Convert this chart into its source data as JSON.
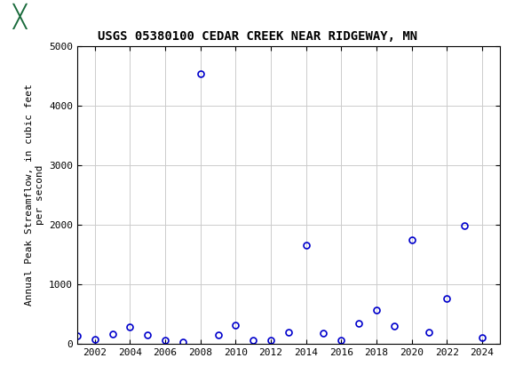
{
  "title": "USGS 05380100 CEDAR CREEK NEAR RIDGEWAY, MN",
  "ylabel": "Annual Peak Streamflow, in cubic feet\nper second",
  "xlabel": "",
  "xlim": [
    2001,
    2025
  ],
  "ylim": [
    0,
    5000
  ],
  "yticks": [
    0,
    1000,
    2000,
    3000,
    4000,
    5000
  ],
  "xticks": [
    2002,
    2004,
    2006,
    2008,
    2010,
    2012,
    2014,
    2016,
    2018,
    2020,
    2022,
    2024
  ],
  "years": [
    2001,
    2002,
    2003,
    2004,
    2005,
    2006,
    2007,
    2008,
    2009,
    2010,
    2011,
    2012,
    2013,
    2014,
    2015,
    2016,
    2017,
    2018,
    2019,
    2020,
    2021,
    2022,
    2023,
    2024
  ],
  "values": [
    130,
    80,
    160,
    280,
    150,
    60,
    30,
    4530,
    155,
    320,
    55,
    65,
    200,
    1650,
    175,
    60,
    350,
    560,
    300,
    1740,
    200,
    760,
    1980,
    100
  ],
  "marker_color": "#0000cc",
  "marker_size": 5,
  "marker_style": "o",
  "marker_facecolor": "none",
  "grid_color": "#cccccc",
  "background_color": "#ffffff",
  "header_bg_color": "#1a6b3c",
  "title_fontsize": 10,
  "ylabel_fontsize": 8,
  "tick_fontsize": 8,
  "font_family": "monospace"
}
